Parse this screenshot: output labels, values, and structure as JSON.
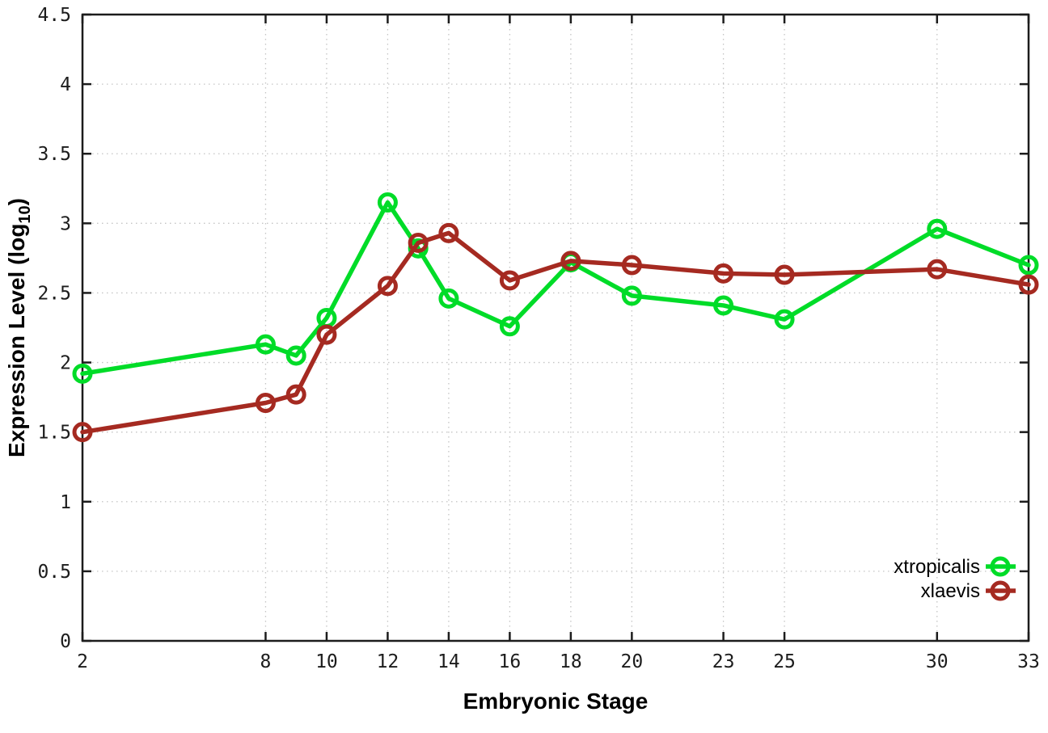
{
  "chart_data": {
    "type": "line",
    "title": "",
    "xlabel": "Embryonic Stage",
    "ylabel": {
      "main": "Expression Level (log",
      "sub": "10",
      "end": ")"
    },
    "xlim": [
      2,
      33
    ],
    "ylim": [
      0,
      4.5
    ],
    "grid": true,
    "legend_position": "bottom-right",
    "x_tick_values": [
      2,
      8,
      10,
      12,
      14,
      16,
      18,
      20,
      23,
      25,
      30,
      33
    ],
    "x_tick_labels": [
      "2",
      "8",
      "10",
      "12",
      "14",
      "16",
      "18",
      "20",
      "23",
      "25",
      "30",
      "33"
    ],
    "y_tick_values": [
      0,
      0.5,
      1,
      1.5,
      2,
      2.5,
      3,
      3.5,
      4,
      4.5
    ],
    "y_tick_labels": [
      "0",
      "0.5",
      "1",
      "1.5",
      "2",
      "2.5",
      "3",
      "3.5",
      "4",
      "4.5"
    ],
    "x": [
      2,
      8,
      9,
      10,
      12,
      13,
      14,
      16,
      18,
      20,
      23,
      25,
      30,
      33
    ],
    "series": [
      {
        "name": "xtropicalis",
        "color": "#00DC28",
        "marker": "open-circle",
        "values": [
          1.92,
          2.13,
          2.05,
          2.32,
          3.15,
          2.82,
          2.46,
          2.26,
          2.72,
          2.48,
          2.41,
          2.31,
          2.96,
          2.7
        ]
      },
      {
        "name": "xlaevis",
        "color": "#A52A21",
        "marker": "open-circle",
        "values": [
          1.5,
          1.71,
          1.77,
          2.2,
          2.55,
          2.86,
          2.93,
          2.59,
          2.73,
          2.7,
          2.64,
          2.63,
          2.67,
          2.56
        ]
      }
    ],
    "colors": {
      "background": "#ffffff",
      "grid": "#c4c4c4",
      "axis": "#1c1c1c"
    }
  }
}
